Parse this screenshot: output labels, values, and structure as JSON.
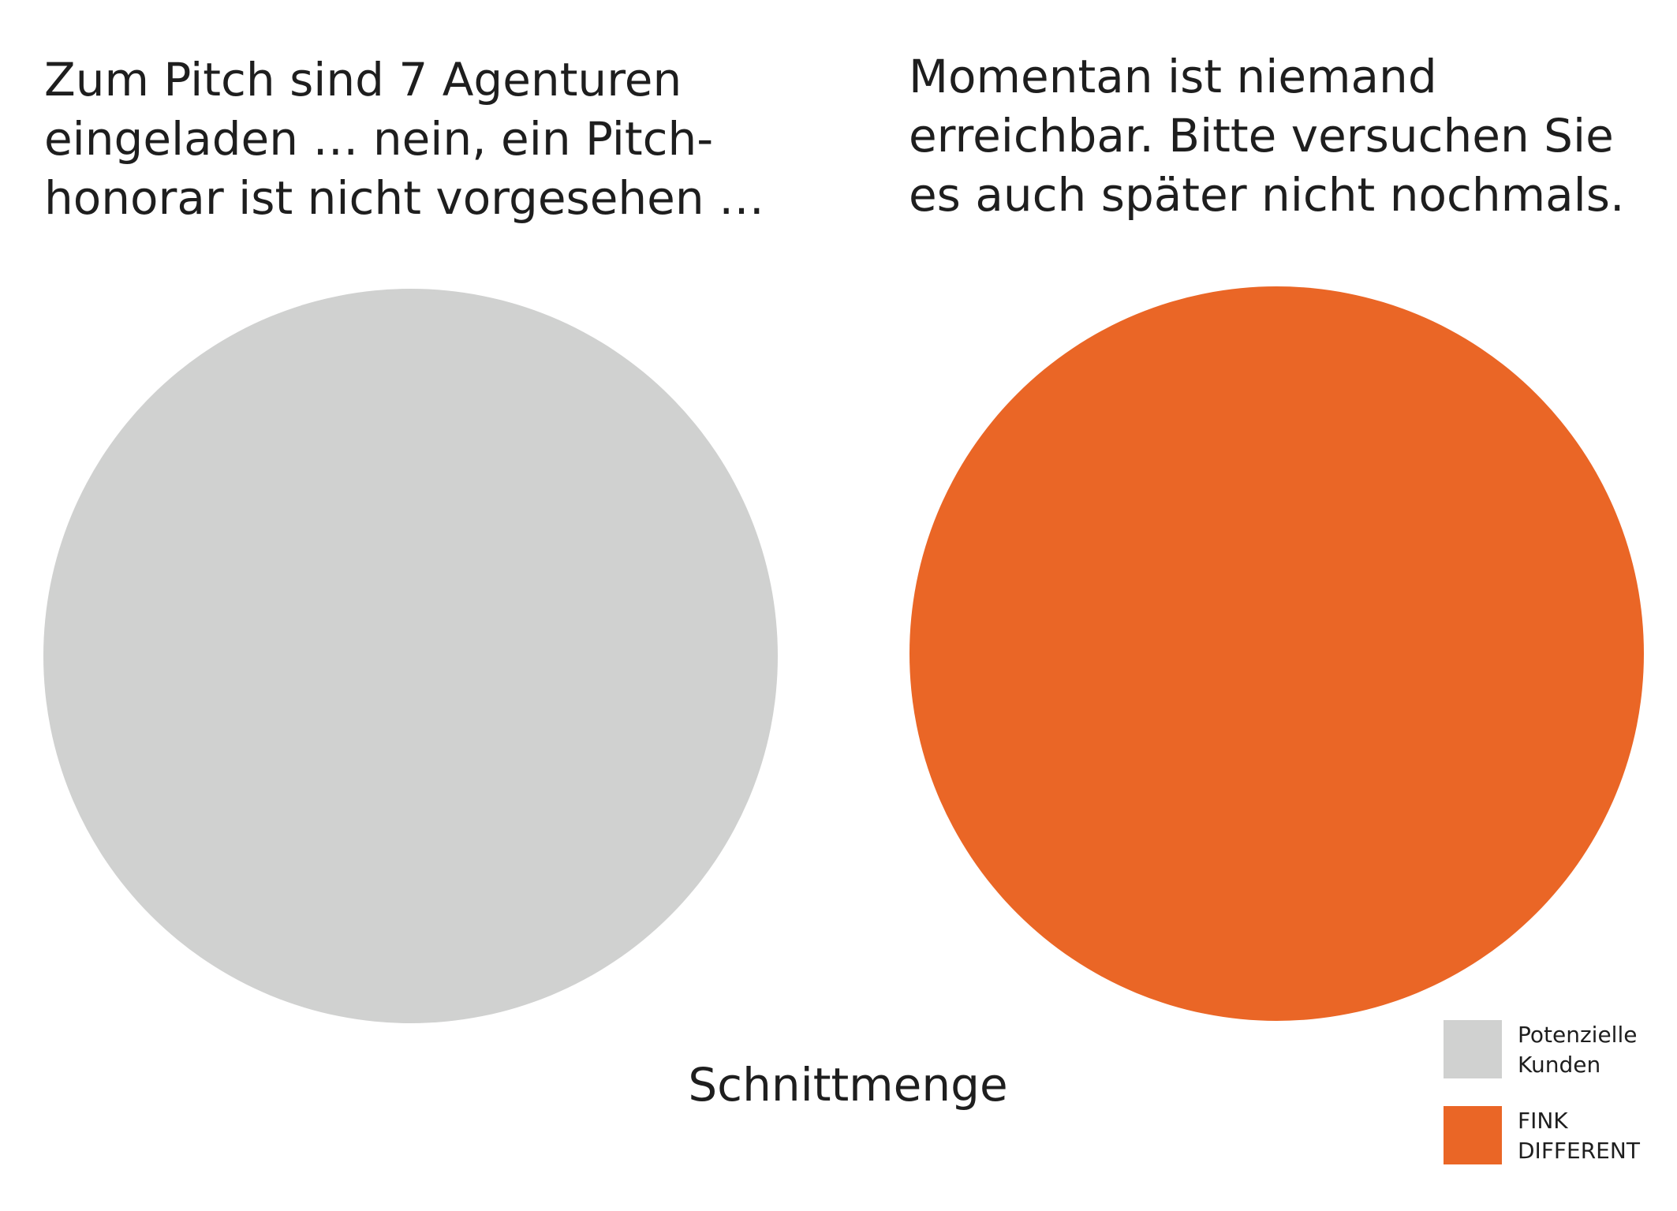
{
  "quotes": {
    "left": "Zum Pitch sind 7 Agenturen\neingeladen … nein, ein Pitch-\nhonorar ist nicht vorgesehen …",
    "right": "Momentan ist niemand\nerreichbar. Bitte versuchen Sie\nes auch später nicht nochmals."
  },
  "sets": [
    {
      "name": "Potenzielle Kunden",
      "color": "#d0d1d0"
    },
    {
      "name": "FINK DIFFERENT",
      "color": "#ea6626"
    }
  ],
  "intersection_label": "Schnittmenge",
  "legend": {
    "items": [
      {
        "label": "Potenzielle\nKunden",
        "color": "#d0d1d0"
      },
      {
        "label": "FINK\nDIFFERENT",
        "color": "#ea6626"
      }
    ]
  }
}
